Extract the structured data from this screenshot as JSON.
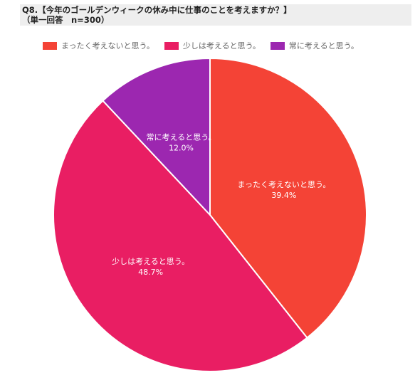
{
  "title": {
    "line1": "Q8.【今年のゴールデンウィークの休み中に仕事のことを考えますか？】",
    "line2": "（単一回答　n=300）"
  },
  "chart_data": {
    "type": "pie",
    "title": "Q8.【今年のゴールデンウィークの休み中に仕事のことを考えますか？】",
    "subtitle": "（単一回答　n=300）",
    "legend": "top",
    "categories": [
      "まったく考えないと思う。",
      "少しは考えると思う。",
      "常に考えると思う。"
    ],
    "values": [
      39.4,
      48.7,
      12.0
    ],
    "percent_labels": [
      "39.4%",
      "48.7%",
      "12.0%"
    ],
    "colors": [
      "#f44336",
      "#e91e63",
      "#9c27b0"
    ]
  }
}
